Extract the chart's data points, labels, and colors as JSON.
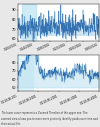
{
  "title": "",
  "caption": "The lower curve represents a Zoomed Timeline of the upper one. The\nzoomed view allows you to more more precisely identify peaks over time and\ntheir actual file.",
  "top_chart": {
    "ylabel": "",
    "yticks": [
      60,
      70,
      80,
      90
    ],
    "xtick_labels": [
      "1/10/2024",
      "1/14/2024",
      "1/18/2024",
      "1/22/2024",
      "1/26/2024",
      "1/30/2024"
    ],
    "line_color": "#1a5fa8",
    "fill_color": "#a8d0e8",
    "noise_mean": 72,
    "noise_std": 6,
    "highlight_color": "#b0dff0"
  },
  "bottom_chart": {
    "ylabel": "",
    "yticks": [
      50,
      60,
      70,
      80
    ],
    "xtick_labels": [
      "1/11/100,001",
      "1/11/100,1001",
      "1/11/100,2001",
      "1/11/100,3001",
      "1/11/100,4001"
    ],
    "line_color": "#1a5fa8",
    "fill_color": "#b8dff0",
    "noise_mean": 65,
    "noise_std": 8,
    "highlight_color": "#c8ecf8"
  },
  "bg_color": "#e8e8e8",
  "plot_bg": "#ffffff"
}
